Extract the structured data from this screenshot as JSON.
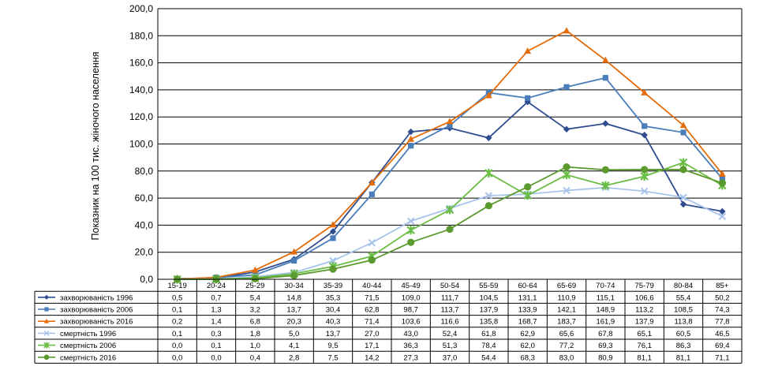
{
  "chart_data": {
    "type": "line",
    "title": "",
    "xlabel": "",
    "ylabel": "Показник на 100 тис. жіночого населення",
    "ylim": [
      0,
      200
    ],
    "ytick_labels": [
      "0,0",
      "20,0",
      "40,0",
      "60,0",
      "80,0",
      "100,0",
      "120,0",
      "140,0",
      "160,0",
      "180,0",
      "200,0"
    ],
    "grid": true,
    "legend": "data-table-left",
    "categories": [
      "15-19",
      "20-24",
      "25-29",
      "30-34",
      "35-39",
      "40-44",
      "45-49",
      "50-54",
      "55-59",
      "60-64",
      "65-69",
      "70-74",
      "75-79",
      "80-84",
      "85+"
    ],
    "series": [
      {
        "name": "захворюваність 1996",
        "color": "#2F4C8F",
        "marker": "diamond",
        "values": [
          0.5,
          0.7,
          5.4,
          14.8,
          35.3,
          71.5,
          109.0,
          111.7,
          104.5,
          131.1,
          110.9,
          115.1,
          106.6,
          55.4,
          50.2
        ],
        "labels": [
          "0,5",
          "0,7",
          "5,4",
          "14,8",
          "35,3",
          "71,5",
          "109,0",
          "111,7",
          "104,5",
          "131,1",
          "110,9",
          "115,1",
          "106,6",
          "55,4",
          "50,2"
        ]
      },
      {
        "name": "захворюваність 2006",
        "color": "#4A7EBB",
        "marker": "square",
        "values": [
          0.1,
          1.3,
          3.2,
          13.7,
          30.4,
          62.8,
          98.7,
          113.7,
          137.9,
          133.9,
          142.1,
          148.9,
          113.2,
          108.5,
          74.3
        ],
        "labels": [
          "0,1",
          "1,3",
          "3,2",
          "13,7",
          "30,4",
          "62,8",
          "98,7",
          "113,7",
          "137,9",
          "133,9",
          "142,1",
          "148,9",
          "113,2",
          "108,5",
          "74,3"
        ]
      },
      {
        "name": "захворюваність 2016",
        "color": "#E46C0A",
        "marker": "triangle",
        "values": [
          0.2,
          1.4,
          6.8,
          20.3,
          40.3,
          71.4,
          103.6,
          116.6,
          135.8,
          168.7,
          183.7,
          161.9,
          137.9,
          113.8,
          77.8
        ],
        "labels": [
          "0,2",
          "1,4",
          "6,8",
          "20,3",
          "40,3",
          "71,4",
          "103,6",
          "116,6",
          "135,8",
          "168,7",
          "183,7",
          "161,9",
          "137,9",
          "113,8",
          "77,8"
        ]
      },
      {
        "name": "смертність 1996",
        "color": "#A9C4EB",
        "marker": "x",
        "values": [
          0.1,
          0.3,
          1.8,
          5.0,
          13.7,
          27.0,
          43.0,
          52.4,
          61.8,
          62.9,
          65.6,
          67.8,
          65.1,
          60.5,
          46.5
        ],
        "labels": [
          "0,1",
          "0,3",
          "1,8",
          "5,0",
          "13,7",
          "27,0",
          "43,0",
          "52,4",
          "61,8",
          "62,9",
          "65,6",
          "67,8",
          "65,1",
          "60,5",
          "46,5"
        ]
      },
      {
        "name": "смертність 2006",
        "color": "#6BBE45",
        "marker": "star",
        "values": [
          0.0,
          0.1,
          1.0,
          4.1,
          9.5,
          17.1,
          36.3,
          51.3,
          78.4,
          62.0,
          77.2,
          69.3,
          76.1,
          86.3,
          69.4
        ],
        "labels": [
          "0,0",
          "0,1",
          "1,0",
          "4,1",
          "9,5",
          "17,1",
          "36,3",
          "51,3",
          "78,4",
          "62,0",
          "77,2",
          "69,3",
          "76,1",
          "86,3",
          "69,4"
        ]
      },
      {
        "name": "смертність 2016",
        "color": "#5A9A2E",
        "marker": "circle",
        "values": [
          0.0,
          0.0,
          0.4,
          2.8,
          7.5,
          14.2,
          27.3,
          37.0,
          54.4,
          68.3,
          83.0,
          80.9,
          81.1,
          81.1,
          71.1
        ],
        "labels": [
          "0,0",
          "0,0",
          "0,4",
          "2,8",
          "7,5",
          "14,2",
          "27,3",
          "37,0",
          "54,4",
          "68,3",
          "83,0",
          "80,9",
          "81,1",
          "81,1",
          "71,1"
        ]
      }
    ]
  }
}
